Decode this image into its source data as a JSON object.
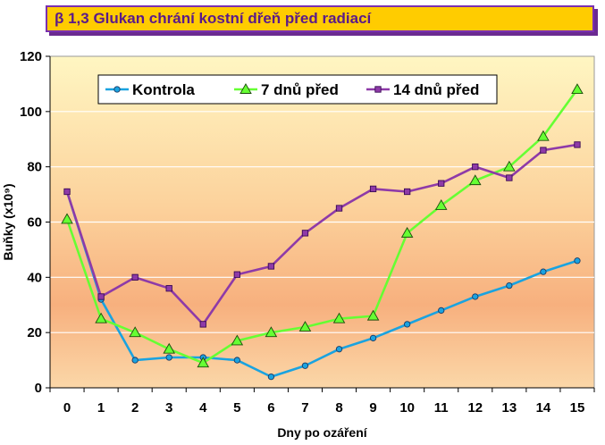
{
  "title": "β 1,3 Glukan chrání kostní dřeň před radiací",
  "chart_data": {
    "type": "line",
    "title": "β 1,3 Glukan chrání kostní dřeň před radiací",
    "xlabel": "Dny po ozáření",
    "ylabel": "Buňky (x10⁹)",
    "categories": [
      "0",
      "1",
      "2",
      "3",
      "4",
      "5",
      "6",
      "7",
      "8",
      "9",
      "10",
      "11",
      "12",
      "13",
      "14",
      "15"
    ],
    "ylim": [
      0,
      120
    ],
    "yticks": [
      0,
      20,
      40,
      60,
      80,
      100,
      120
    ],
    "grid": true,
    "legend_position": "top",
    "series": [
      {
        "name": "Kontrola",
        "color": "#1aa3e0",
        "marker": "circle",
        "values": [
          71,
          32,
          10,
          11,
          11,
          10,
          4,
          8,
          14,
          18,
          23,
          28,
          33,
          37,
          42,
          46
        ]
      },
      {
        "name": "7 dnů před",
        "color": "#66ff33",
        "marker": "triangle",
        "values": [
          61,
          25,
          20,
          14,
          9,
          17,
          20,
          22,
          25,
          26,
          56,
          66,
          75,
          80,
          91,
          108
        ]
      },
      {
        "name": "14 dnů před",
        "color": "#8e3aa8",
        "marker": "square",
        "values": [
          71,
          33,
          40,
          36,
          23,
          41,
          44,
          56,
          65,
          72,
          71,
          74,
          80,
          76,
          86,
          88
        ]
      }
    ]
  }
}
